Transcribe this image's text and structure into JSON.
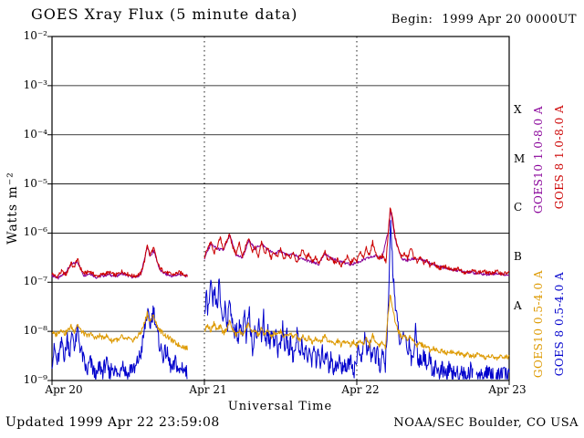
{
  "page": {
    "title": "GOES Xray Flux (5 minute data)",
    "begin_label": "Begin:",
    "begin_value": "1999 Apr 20 0000UT",
    "updated": "Updated 1999 Apr 22 23:59:08",
    "credit": "NOAA/SEC Boulder, CO USA"
  },
  "chart_data": {
    "type": "line",
    "title": "GOES Xray Flux (5 minute data)",
    "xlabel": "Universal Time",
    "ylabel": "Watts m⁻²",
    "y_scale": "log",
    "ylim_exponents": [
      -9,
      -2
    ],
    "x_range_hours": [
      0,
      72
    ],
    "xtick_hours": [
      0,
      24,
      48,
      72
    ],
    "xtick_labels": [
      "Apr 20",
      "Apr 21",
      "Apr 22",
      "Apr 23"
    ],
    "ytick_exponents": [
      -2,
      -3,
      -4,
      -5,
      -6,
      -7,
      -8,
      -9
    ],
    "ytick_labels": [
      "10⁻²",
      "10⁻³",
      "10⁻⁴",
      "10⁻⁵",
      "10⁻⁶",
      "10⁻⁷",
      "10⁻⁸",
      "10⁻⁹"
    ],
    "grid_exponents": [
      -3,
      -4,
      -5,
      -6,
      -7,
      -8
    ],
    "day_divider_hours": [
      24,
      48
    ],
    "flare_classes": [
      {
        "letter": "X",
        "exp_mid": -3.5
      },
      {
        "letter": "M",
        "exp_mid": -4.5
      },
      {
        "letter": "C",
        "exp_mid": -5.5
      },
      {
        "letter": "B",
        "exp_mid": -6.5
      },
      {
        "letter": "A",
        "exp_mid": -7.5
      }
    ],
    "series": [
      {
        "name": "GOES10 1.0-8.0 A",
        "color": "#880099",
        "noise": 0.03,
        "gaps": [
          [
            21.4,
            24
          ]
        ],
        "points": [
          0,
          -6.86,
          1,
          -6.92,
          2,
          -6.82,
          3,
          -6.65,
          4,
          -6.58,
          5,
          -6.86,
          6,
          -6.82,
          7,
          -6.9,
          8,
          -6.87,
          9,
          -6.84,
          10,
          -6.88,
          11,
          -6.82,
          12,
          -6.87,
          13,
          -6.9,
          14,
          -6.85,
          15,
          -6.28,
          15.5,
          -6.48,
          16,
          -6.35,
          17,
          -6.76,
          18,
          -6.84,
          19,
          -6.88,
          20,
          -6.84,
          21.4,
          -6.88,
          24,
          -6.52,
          25,
          -6.22,
          26,
          -6.32,
          27,
          -6.35,
          28,
          -6.05,
          29,
          -6.45,
          30,
          -6.5,
          31,
          -6.16,
          32,
          -6.32,
          33,
          -6.22,
          34,
          -6.34,
          35,
          -6.42,
          36,
          -6.36,
          37,
          -6.46,
          38,
          -6.42,
          39,
          -6.52,
          40,
          -6.55,
          41,
          -6.6,
          42,
          -6.64,
          43,
          -6.42,
          44,
          -6.52,
          45,
          -6.56,
          46,
          -6.6,
          47,
          -6.64,
          48,
          -6.6,
          49,
          -6.55,
          50,
          -6.5,
          51,
          -6.46,
          52,
          -6.5,
          53,
          -5.95,
          53.3,
          -5.5,
          54,
          -6.1,
          55,
          -6.52,
          56,
          -6.56,
          57,
          -6.52,
          58,
          -6.54,
          59,
          -6.58,
          60,
          -6.64,
          62,
          -6.72,
          64,
          -6.76,
          66,
          -6.8,
          68,
          -6.84,
          70,
          -6.82,
          72,
          -6.86
        ]
      },
      {
        "name": "GOES 8 1.0-8.0 A",
        "color": "#cc0000",
        "noise": 0.04,
        "gaps": [
          [
            21.4,
            24
          ]
        ],
        "points": [
          0,
          -6.82,
          0.7,
          -6.9,
          1.5,
          -6.78,
          2.2,
          -6.85,
          3,
          -6.6,
          3.4,
          -6.72,
          4,
          -6.52,
          4.4,
          -6.7,
          5,
          -6.82,
          6,
          -6.78,
          7,
          -6.88,
          8,
          -6.84,
          9,
          -6.8,
          10,
          -6.86,
          11,
          -6.78,
          12,
          -6.84,
          13,
          -6.88,
          14,
          -6.82,
          14.6,
          -6.55,
          15,
          -6.22,
          15.4,
          -6.45,
          16,
          -6.3,
          16.6,
          -6.6,
          17,
          -6.72,
          18,
          -6.8,
          19,
          -6.85,
          20,
          -6.8,
          21,
          -6.85,
          21.4,
          -6.85,
          24,
          -6.5,
          24.5,
          -6.3,
          25,
          -6.18,
          25.5,
          -6.42,
          26,
          -6.28,
          26.5,
          -6.1,
          27,
          -6.32,
          27.5,
          -6.18,
          28,
          -6.0,
          28.4,
          -6.28,
          29,
          -6.42,
          29.5,
          -6.2,
          30,
          -6.48,
          30.5,
          -6.28,
          31,
          -6.12,
          31.5,
          -6.38,
          32,
          -6.28,
          32.5,
          -6.48,
          33,
          -6.18,
          33.5,
          -6.42,
          34,
          -6.3,
          34.5,
          -6.52,
          35,
          -6.38,
          35.5,
          -6.5,
          36,
          -6.32,
          36.5,
          -6.55,
          37,
          -6.42,
          37.5,
          -6.52,
          38,
          -6.38,
          38.5,
          -6.58,
          39,
          -6.48,
          39.5,
          -6.32,
          40,
          -6.52,
          40.5,
          -6.42,
          41,
          -6.58,
          41.5,
          -6.48,
          42,
          -6.62,
          42.5,
          -6.52,
          43,
          -6.38,
          43.5,
          -6.58,
          44,
          -6.48,
          44.5,
          -6.62,
          45,
          -6.52,
          45.5,
          -6.68,
          46,
          -6.58,
          46.5,
          -6.48,
          47,
          -6.62,
          47.5,
          -6.52,
          48,
          -6.58,
          48.5,
          -6.38,
          49,
          -6.52,
          49.5,
          -6.28,
          50,
          -6.48,
          50.5,
          -6.18,
          51,
          -6.42,
          51.5,
          -6.52,
          52,
          -6.45,
          52.6,
          -6.58,
          53,
          -5.9,
          53.3,
          -5.45,
          53.7,
          -5.75,
          54,
          -6.05,
          54.5,
          -6.32,
          55,
          -6.48,
          55.5,
          -6.42,
          56,
          -6.52,
          56.5,
          -6.3,
          57,
          -6.48,
          57.5,
          -6.58,
          58,
          -6.5,
          58.5,
          -6.62,
          59,
          -6.55,
          59.5,
          -6.68,
          60,
          -6.6,
          61,
          -6.72,
          62,
          -6.68,
          63,
          -6.76,
          64,
          -6.72,
          65,
          -6.8,
          66,
          -6.76,
          67,
          -6.8,
          68,
          -6.78,
          69,
          -6.82,
          70,
          -6.78,
          71,
          -6.83,
          72,
          -6.8
        ]
      },
      {
        "name": "GOES 8 0.5-4.0 A",
        "color": "#0000cc",
        "noise": 0.17,
        "gaps": [
          [
            21.4,
            24
          ],
          [
            66.3,
            66.8
          ],
          [
            69.5,
            69.9
          ]
        ],
        "points": [
          0,
          -8.6,
          0.4,
          -8.35,
          0.8,
          -8.65,
          1.2,
          -8.45,
          1.6,
          -8.2,
          2,
          -8.55,
          2.4,
          -8.1,
          2.8,
          -8.45,
          3.2,
          -8.0,
          3.6,
          -8.35,
          4,
          -7.95,
          4.4,
          -8.3,
          5,
          -8.6,
          5.5,
          -8.85,
          6,
          -8.6,
          6.5,
          -8.8,
          7,
          -8.95,
          7.5,
          -8.7,
          8,
          -8.85,
          8.5,
          -8.6,
          9,
          -8.9,
          9.5,
          -8.7,
          10,
          -8.82,
          10.5,
          -8.9,
          11,
          -8.6,
          11.5,
          -8.8,
          12,
          -8.9,
          12.5,
          -8.7,
          13,
          -8.82,
          13.5,
          -8.6,
          14,
          -8.45,
          14.6,
          -7.95,
          15,
          -7.6,
          15.4,
          -7.9,
          16,
          -7.55,
          16.5,
          -8.0,
          17,
          -8.3,
          17.5,
          -8.5,
          18,
          -8.4,
          18.5,
          -8.65,
          19,
          -8.8,
          19.5,
          -8.6,
          20,
          -8.85,
          20.5,
          -8.7,
          21,
          -8.82,
          21.4,
          -8.88,
          24,
          -7.75,
          24.3,
          -7.3,
          24.6,
          -7.6,
          25,
          -7.05,
          25.3,
          -7.45,
          25.6,
          -7.2,
          26,
          -7.55,
          26.3,
          -7.0,
          26.6,
          -7.5,
          27,
          -7.8,
          27.3,
          -7.35,
          27.6,
          -7.95,
          28,
          -7.3,
          28.3,
          -7.7,
          28.6,
          -8.1,
          29,
          -7.85,
          29.3,
          -8.25,
          29.6,
          -7.75,
          30,
          -8.15,
          30.3,
          -7.6,
          30.6,
          -8.25,
          31,
          -7.5,
          31.3,
          -8.0,
          31.6,
          -8.35,
          32,
          -7.9,
          32.3,
          -8.25,
          32.6,
          -7.7,
          33,
          -8.15,
          33.3,
          -7.6,
          33.6,
          -8.3,
          34,
          -8.0,
          34.3,
          -8.35,
          34.6,
          -7.9,
          35,
          -8.25,
          35.3,
          -8.0,
          35.6,
          -8.45,
          36,
          -8.2,
          36.3,
          -7.9,
          36.6,
          -8.35,
          37,
          -8.1,
          37.3,
          -8.45,
          37.6,
          -8.2,
          38,
          -8.55,
          38.3,
          -8.3,
          38.6,
          -8.0,
          39,
          -8.45,
          39.3,
          -8.2,
          39.6,
          -8.55,
          40,
          -8.3,
          40.3,
          -8.65,
          40.6,
          -8.4,
          41,
          -8.6,
          41.3,
          -8.2,
          41.6,
          -8.65,
          42,
          -8.45,
          42.3,
          -8.75,
          42.6,
          -8.4,
          43,
          -8.65,
          43.3,
          -8.3,
          43.6,
          -8.75,
          44,
          -8.5,
          44.3,
          -8.85,
          44.6,
          -8.6,
          45,
          -8.78,
          45.3,
          -8.5,
          45.6,
          -8.85,
          46,
          -8.6,
          46.5,
          -8.78,
          47,
          -8.5,
          47.5,
          -8.82,
          48,
          -8.6,
          48.3,
          -8.2,
          48.6,
          -8.65,
          49,
          -8.4,
          49.3,
          -8.0,
          49.6,
          -8.5,
          50,
          -8.2,
          50.3,
          -8.55,
          50.6,
          -8.3,
          51,
          -8.65,
          51.3,
          -8.4,
          51.6,
          -8.75,
          52,
          -8.5,
          52.5,
          -8.68,
          53,
          -7.5,
          53.2,
          -6.3,
          53.35,
          -5.78,
          53.55,
          -6.4,
          53.8,
          -6.95,
          54,
          -7.35,
          54.3,
          -7.75,
          54.6,
          -8.05,
          55,
          -8.3,
          55.5,
          -8.0,
          56,
          -8.45,
          56.3,
          -8.15,
          56.6,
          -8.6,
          57,
          -8.4,
          57.3,
          -7.9,
          57.6,
          -8.5,
          58,
          -8.65,
          58.5,
          -8.4,
          59,
          -8.75,
          59.5,
          -8.55,
          60,
          -8.85,
          60.5,
          -8.65,
          61,
          -8.92,
          61.5,
          -8.75,
          62,
          -8.9,
          62.5,
          -8.78,
          63,
          -8.92,
          63.5,
          -8.8,
          64,
          -8.9,
          64.5,
          -8.78,
          65,
          -8.95,
          65.5,
          -8.85,
          66,
          -8.78,
          66.3,
          -8.9,
          66.8,
          -8.92,
          67,
          -8.82,
          67.5,
          -8.95,
          68,
          -8.88,
          68.5,
          -8.78,
          69,
          -8.92,
          69.5,
          -8.85,
          70,
          -8.95,
          70.5,
          -8.88,
          71,
          -8.82,
          71.5,
          -8.92,
          72,
          -8.88
        ]
      },
      {
        "name": "GOES10 0.5-4.0 A",
        "color": "#dd9900",
        "noise": 0.05,
        "gaps": [
          [
            21.4,
            24
          ]
        ],
        "points": [
          0,
          -8.0,
          0.5,
          -8.08,
          1,
          -8.02,
          1.5,
          -7.95,
          2,
          -8.05,
          2.5,
          -7.98,
          3,
          -7.9,
          3.5,
          -8.0,
          4,
          -7.85,
          4.5,
          -7.98,
          5,
          -8.04,
          5.5,
          -8.1,
          6,
          -8.05,
          6.5,
          -8.1,
          7,
          -8.14,
          7.5,
          -8.08,
          8,
          -8.14,
          8.5,
          -8.08,
          9,
          -8.15,
          9.5,
          -8.2,
          10,
          -8.14,
          10.5,
          -8.2,
          11,
          -8.1,
          11.5,
          -8.18,
          12,
          -8.14,
          12.5,
          -8.2,
          13,
          -8.15,
          13.5,
          -8.1,
          14,
          -8.02,
          14.6,
          -7.82,
          15,
          -7.62,
          15.4,
          -7.8,
          16,
          -7.68,
          16.5,
          -7.88,
          17,
          -7.98,
          17.5,
          -8.04,
          18,
          -8.1,
          18.5,
          -8.14,
          19,
          -8.2,
          19.5,
          -8.24,
          20,
          -8.28,
          20.5,
          -8.3,
          21,
          -8.33,
          21.4,
          -8.35,
          24,
          -7.98,
          24.5,
          -7.88,
          25,
          -7.98,
          25.5,
          -7.84,
          26,
          -7.98,
          26.5,
          -7.9,
          27,
          -8.04,
          27.5,
          -7.94,
          28,
          -7.8,
          28.5,
          -7.98,
          29,
          -8.08,
          29.5,
          -7.98,
          30,
          -8.08,
          30.5,
          -7.94,
          31,
          -7.84,
          31.5,
          -8.04,
          32,
          -7.98,
          32.5,
          -8.08,
          33,
          -7.94,
          33.5,
          -8.08,
          34,
          -7.98,
          34.5,
          -8.12,
          35,
          -8.04,
          35.5,
          -8.08,
          36,
          -7.98,
          36.5,
          -8.12,
          37,
          -8.08,
          37.5,
          -8.03,
          38,
          -8.12,
          38.5,
          -8.08,
          39,
          -8.18,
          39.5,
          -8.08,
          40,
          -8.18,
          40.5,
          -8.12,
          41,
          -8.22,
          41.5,
          -8.12,
          42,
          -8.22,
          42.5,
          -8.18,
          43,
          -8.08,
          43.5,
          -8.22,
          44,
          -8.18,
          44.5,
          -8.28,
          45,
          -8.18,
          45.5,
          -8.28,
          46,
          -8.22,
          46.5,
          -8.18,
          47,
          -8.28,
          47.5,
          -8.22,
          48,
          -8.28,
          48.5,
          -8.18,
          49,
          -8.28,
          49.5,
          -8.12,
          50,
          -8.28,
          50.5,
          -8.08,
          51,
          -8.22,
          51.5,
          -8.28,
          52,
          -8.22,
          52.5,
          -8.32,
          53,
          -7.58,
          53.3,
          -7.22,
          53.6,
          -7.48,
          54,
          -7.78,
          54.5,
          -7.98,
          55,
          -8.12,
          55.5,
          -8.08,
          56,
          -8.18,
          56.5,
          -8.08,
          57,
          -8.22,
          57.5,
          -8.28,
          58,
          -8.22,
          58.5,
          -8.32,
          59,
          -8.28,
          59.5,
          -8.38,
          60,
          -8.33,
          60.5,
          -8.38,
          61,
          -8.42,
          61.5,
          -8.38,
          62,
          -8.44,
          63,
          -8.4,
          63.5,
          -8.48,
          64,
          -8.44,
          65,
          -8.5,
          65.5,
          -8.45,
          66,
          -8.52,
          67,
          -8.48,
          68,
          -8.54,
          69,
          -8.5,
          70,
          -8.55,
          71,
          -8.5,
          72,
          -8.54
        ]
      }
    ]
  }
}
